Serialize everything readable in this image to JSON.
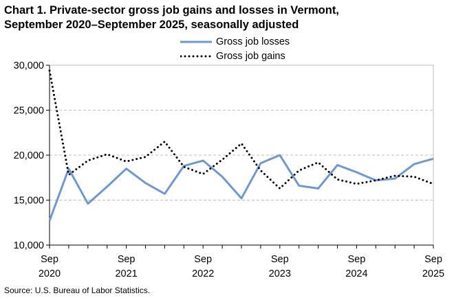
{
  "chart_data": {
    "type": "line",
    "title_line1": "Chart 1. Private-sector gross job gains and losses in Vermont,",
    "title_line2": "September 2020–September 2025, seasonally adjusted",
    "xlabel": "",
    "ylabel": "",
    "ylim": [
      10000,
      30000
    ],
    "y_ticks": [
      10000,
      15000,
      20000,
      25000,
      30000
    ],
    "y_tick_labels": [
      "10,000",
      "15,000",
      "20,000",
      "25,000",
      "30,000"
    ],
    "x_ticks": [
      {
        "index": 0,
        "month": "Sep",
        "year": "2020"
      },
      {
        "index": 4,
        "month": "Sep",
        "year": "2021"
      },
      {
        "index": 8,
        "month": "Sep",
        "year": "2022"
      },
      {
        "index": 12,
        "month": "Sep",
        "year": "2023"
      },
      {
        "index": 16,
        "month": "Sep",
        "year": "2024"
      },
      {
        "index": 20,
        "month": "Sep",
        "year": "2025"
      }
    ],
    "grid": true,
    "legend_position": "top-center",
    "series": [
      {
        "name": "Gross job losses",
        "color": "#6f97d1",
        "style": "solid",
        "values": [
          12700,
          18500,
          14600,
          16500,
          18500,
          16900,
          15700,
          18800,
          19400,
          17600,
          15200,
          19100,
          20000,
          16600,
          16300,
          18900,
          18100,
          17200,
          17400,
          19000,
          19600
        ]
      },
      {
        "name": "Gross job gains",
        "color": "#000000",
        "style": "dotted",
        "values": [
          29400,
          17800,
          19400,
          20100,
          19300,
          19800,
          21500,
          18700,
          17900,
          19500,
          21300,
          18300,
          16300,
          18300,
          19200,
          17300,
          16800,
          17200,
          17700,
          17600,
          16800
        ]
      }
    ]
  },
  "source": "Source: U.S. Bureau of Labor Statistics."
}
